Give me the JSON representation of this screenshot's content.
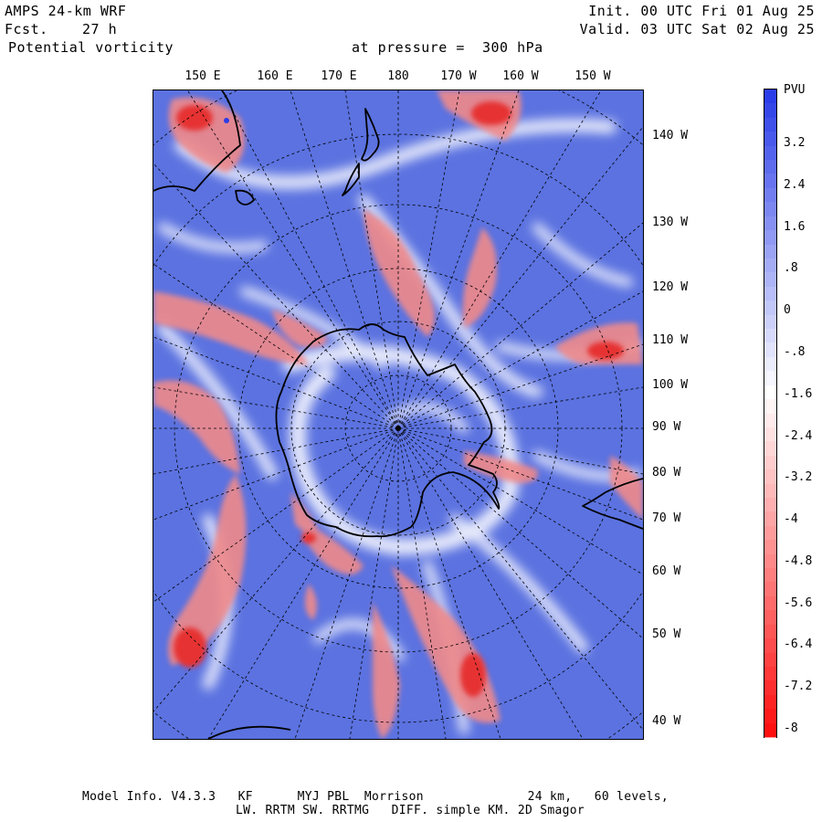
{
  "header": {
    "model": "AMPS 24-km WRF",
    "fcst_label": "Fcst.",
    "fcst_value": "27 h",
    "init": "Init. 00 UTC Fri 01 Aug 25",
    "valid": "Valid. 03 UTC Sat 02 Aug 25",
    "field": "Potential vorticity",
    "level": "at pressure =  300 hPa"
  },
  "map": {
    "projection": "polar-stereographic",
    "center": "South Pole",
    "top_longitude_labels": [
      "150 E",
      "160 E",
      "170 E",
      "180",
      "170 W",
      "160 W",
      "150 W"
    ],
    "right_longitude_labels": [
      "140 W",
      "130 W",
      "120 W",
      "110 W",
      "100 W",
      "90 W",
      "80 W",
      "70 W",
      "60 W",
      "50 W",
      "40 W"
    ],
    "background_color": "#5b72e0",
    "positive_color": "#ef3b3b",
    "neutral_color": "#ffffff"
  },
  "colorbar": {
    "unit": "PVU",
    "labels": [
      "3.2",
      "2.4",
      "1.6",
      ".8",
      "0",
      "-.8",
      "-1.6",
      "-2.4",
      "-3.2",
      "-4",
      "-4.8",
      "-5.6",
      "-6.4",
      "-7.2",
      "-8"
    ],
    "top_color": "#2b3de8",
    "mid_color": "#ffffff",
    "bottom_color": "#ff1010"
  },
  "footer": {
    "line1": "Model Info. V4.3.3   KF      MYJ PBL  Morrison              24 km,   60 levels,",
    "line2": "LW. RRTM SW. RRTMG   DIFF. simple KM. 2D Smagor"
  }
}
